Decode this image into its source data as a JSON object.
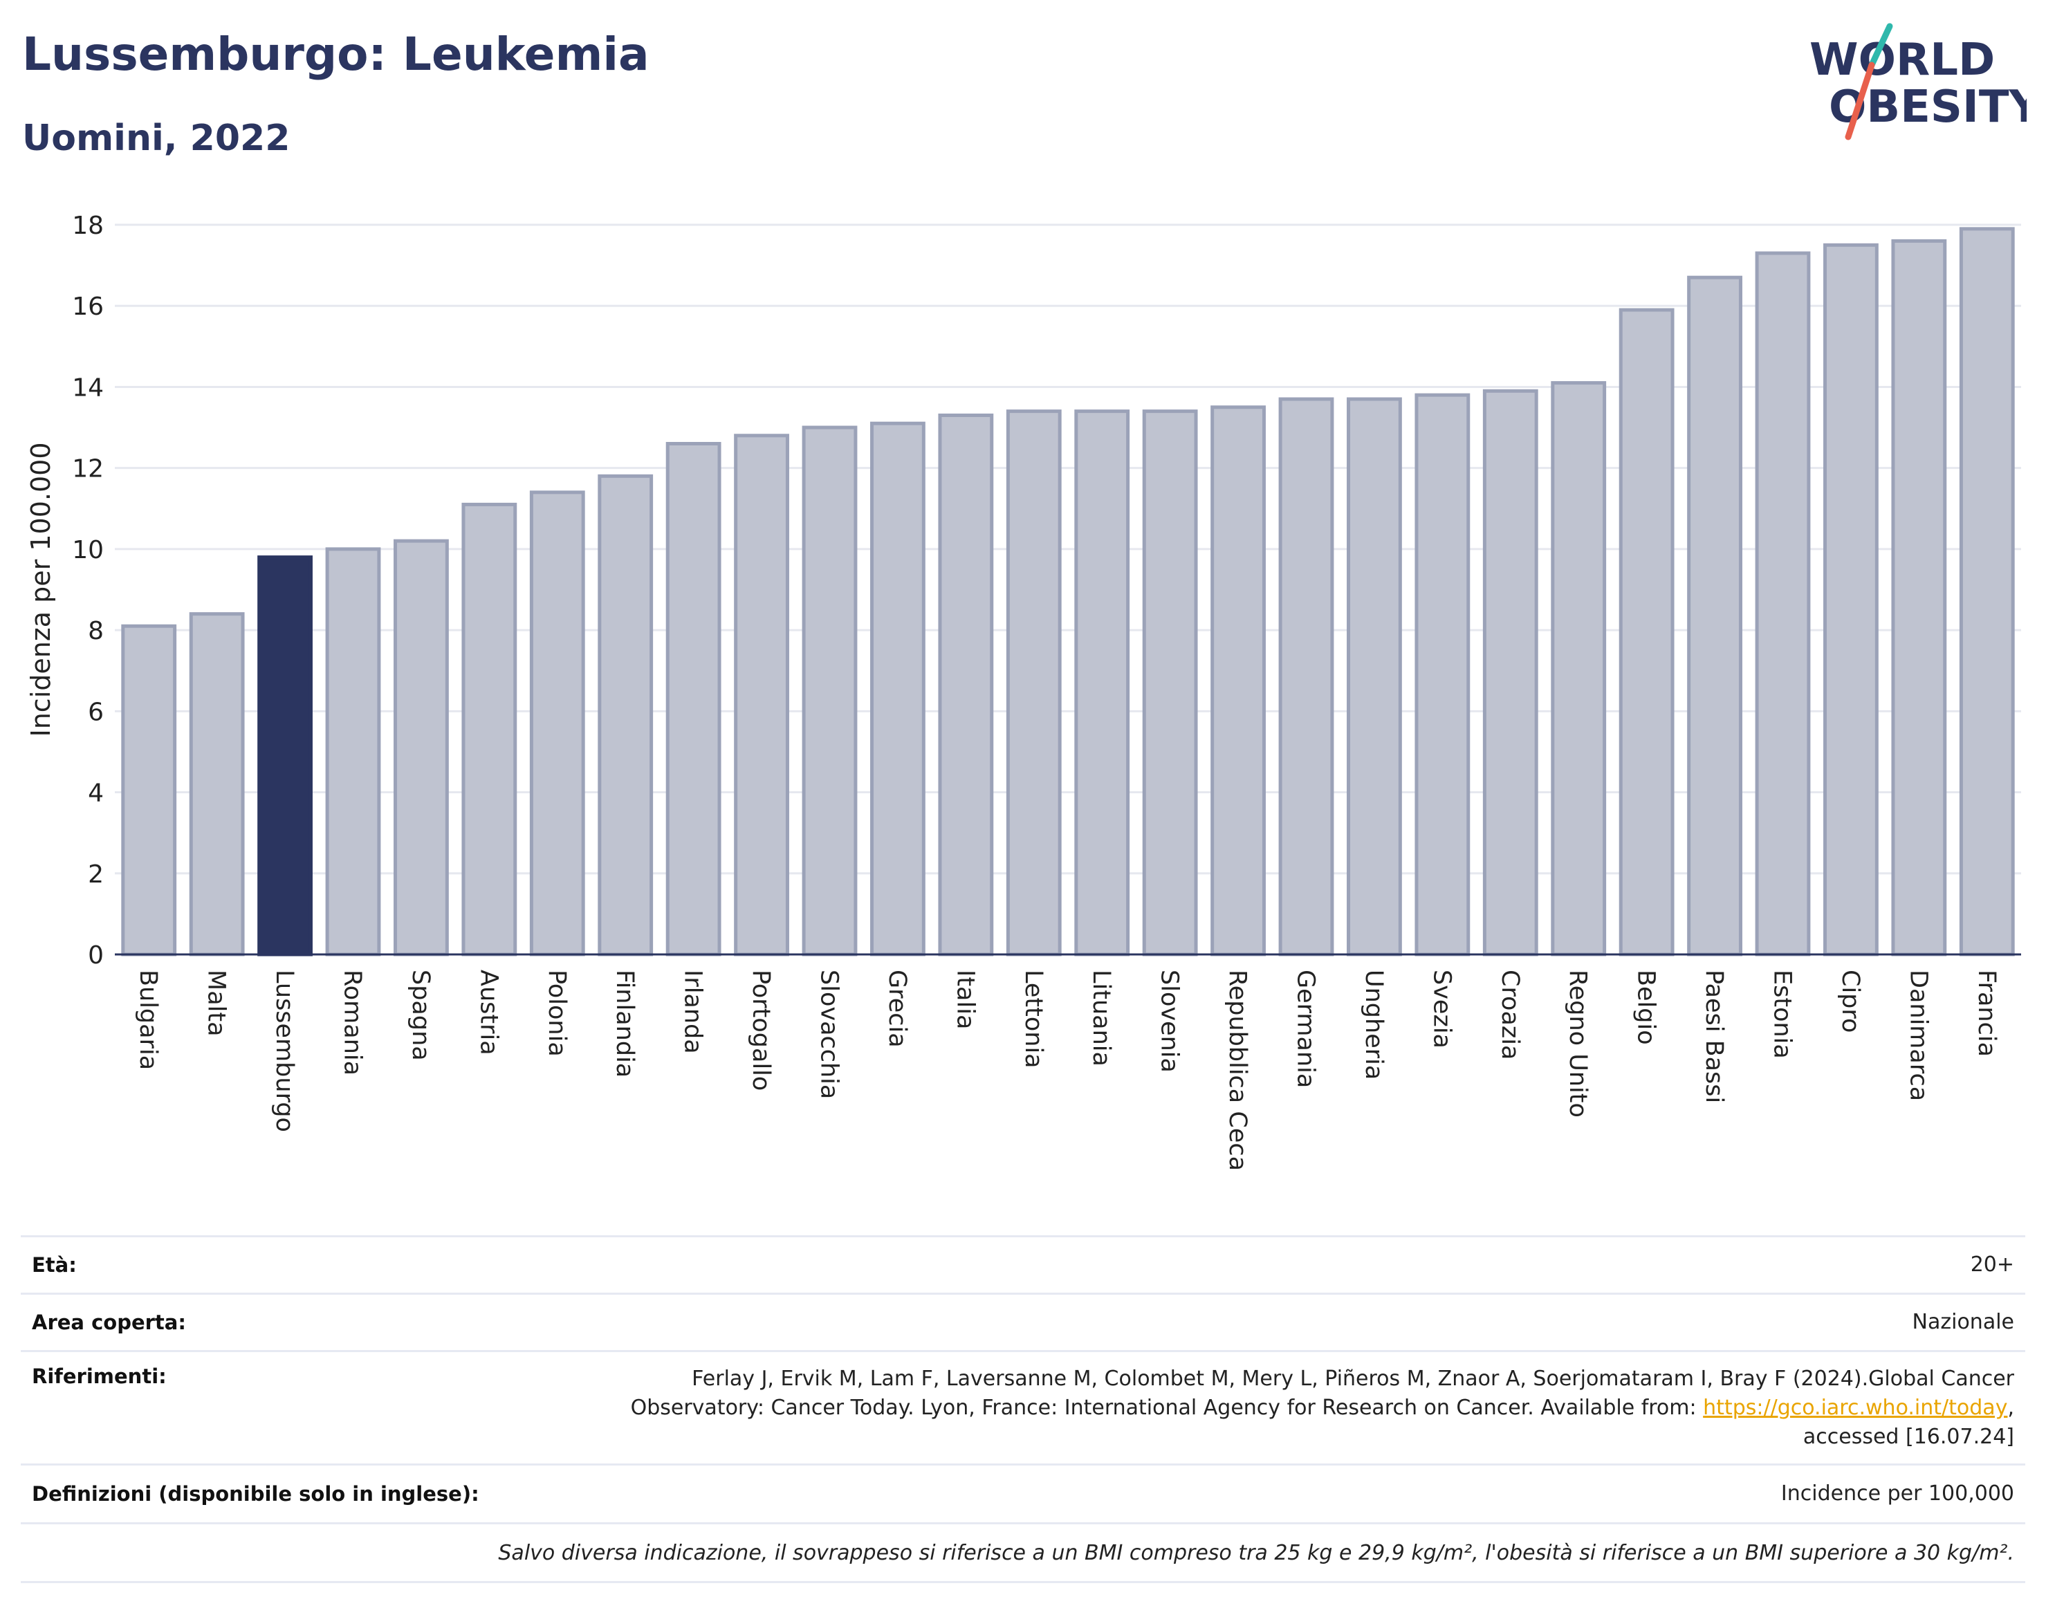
{
  "header": {
    "title": "Lussemburgo: Leukemia",
    "subtitle": "Uomini, 2022"
  },
  "logo": {
    "line1": "WORLD",
    "line2": "OBESITY"
  },
  "colors": {
    "highlight": "#2b3560",
    "bar_fill": "#bfc3d0",
    "bar_stroke": "#9ba2b8",
    "grid": "#e6e8ef",
    "logo_slash_teal": "#2fb8ac",
    "logo_slash_red": "#e8604c",
    "link": "#e9a400"
  },
  "chart_data": {
    "type": "bar",
    "title": "Lussemburgo: Leukemia",
    "subtitle": "Uomini, 2022",
    "xlabel": "",
    "ylabel": "Incidenza per 100.000",
    "ylim": [
      0,
      18
    ],
    "yticks": [
      0,
      2,
      4,
      6,
      8,
      10,
      12,
      14,
      16,
      18
    ],
    "grid": true,
    "highlight": "Lussemburgo",
    "categories": [
      "Bulgaria",
      "Malta",
      "Lussemburgo",
      "Romania",
      "Spagna",
      "Austria",
      "Polonia",
      "Finlandia",
      "Irlanda",
      "Portogallo",
      "Slovacchia",
      "Grecia",
      "Italia",
      "Lettonia",
      "Lituania",
      "Slovenia",
      "Repubblica Ceca",
      "Germania",
      "Ungheria",
      "Svezia",
      "Croazia",
      "Regno Unito",
      "Belgio",
      "Paesi Bassi",
      "Estonia",
      "Cipro",
      "Danimarca",
      "Francia"
    ],
    "values": [
      8.1,
      8.4,
      9.8,
      10.0,
      10.2,
      11.1,
      11.4,
      11.8,
      12.6,
      12.8,
      13.0,
      13.1,
      13.3,
      13.4,
      13.4,
      13.4,
      13.5,
      13.7,
      13.7,
      13.8,
      13.9,
      14.1,
      15.9,
      16.7,
      17.3,
      17.5,
      17.6,
      17.9
    ]
  },
  "info": {
    "eta_label": "Età:",
    "eta_value": "20+",
    "area_label": "Area coperta:",
    "area_value": "Nazionale",
    "rif_label": "Riferimenti:",
    "rif_line1": "Ferlay J, Ervik M, Lam F, Laversanne M, Colombet M, Mery L, Piñeros M, Znaor A, Soerjomataram I, Bray F (2024).Global Cancer",
    "rif_line2": "Observatory: Cancer Today. Lyon, France: International Agency for Research on Cancer. Available from: ",
    "rif_link": "https://gco.iarc.who.int/today",
    "rif_line2_end": ",",
    "rif_line3": "accessed [16.07.24]",
    "def_label": "Definizioni (disponibile solo in inglese):",
    "def_value": "Incidence per 100,000",
    "note": "Salvo diversa indicazione, il sovrappeso si riferisce a un BMI compreso tra 25 kg e 29,9 kg/m², l'obesità si riferisce a un BMI superiore a 30 kg/m²."
  }
}
